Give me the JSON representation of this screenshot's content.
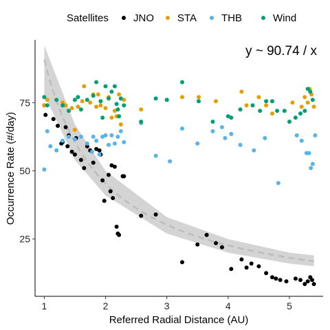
{
  "chart_data": {
    "type": "scatter",
    "xlabel": "Referred Radial Distance (AU)",
    "ylabel": "Occurrence Rate  (#/day)",
    "xlim": [
      0.85,
      5.55
    ],
    "ylim": [
      4,
      98
    ],
    "x_ticks": [
      1,
      2,
      3,
      4,
      5
    ],
    "y_ticks": [
      25,
      50,
      75
    ],
    "grid": false,
    "legend": {
      "title": "Satellites",
      "position": "top"
    },
    "annotation": "y ~ 90.74 / x",
    "fit": {
      "model": "y = 90.74 / x",
      "coefficient": 90.74,
      "line_color": "#bdbdbd",
      "band_color": "#cccccc",
      "band": [
        [
          1.0,
          78,
          96
        ],
        [
          1.5,
          54,
          67
        ],
        [
          2.0,
          41,
          50
        ],
        [
          3.0,
          27,
          33
        ],
        [
          4.0,
          20,
          25
        ],
        [
          5.0,
          16,
          20
        ],
        [
          5.4,
          15,
          19
        ]
      ]
    },
    "series": [
      {
        "name": "JNO",
        "color": "#000000",
        "points": [
          [
            1.0,
            74
          ],
          [
            1.02,
            70.5
          ],
          [
            1.15,
            69
          ],
          [
            1.22,
            66.5
          ],
          [
            1.28,
            60
          ],
          [
            1.3,
            60.5
          ],
          [
            1.35,
            66
          ],
          [
            1.38,
            59
          ],
          [
            1.4,
            63
          ],
          [
            1.45,
            57
          ],
          [
            1.5,
            56
          ],
          [
            1.52,
            62
          ],
          [
            1.6,
            54
          ],
          [
            1.65,
            51
          ],
          [
            1.7,
            59
          ],
          [
            1.75,
            57.5
          ],
          [
            1.8,
            53
          ],
          [
            1.85,
            58
          ],
          [
            1.9,
            57.5
          ],
          [
            1.92,
            56
          ],
          [
            1.95,
            46.5
          ],
          [
            1.98,
            39
          ],
          [
            2.05,
            48.5
          ],
          [
            2.08,
            42.5
          ],
          [
            2.1,
            52
          ],
          [
            2.12,
            40
          ],
          [
            2.15,
            51.5
          ],
          [
            2.18,
            29.5
          ],
          [
            2.2,
            27
          ],
          [
            2.22,
            26.5
          ],
          [
            2.28,
            48
          ],
          [
            2.3,
            48
          ],
          [
            2.58,
            33.5
          ],
          [
            2.82,
            34
          ],
          [
            3.25,
            16.5
          ],
          [
            3.5,
            23
          ],
          [
            3.65,
            26.5
          ],
          [
            3.8,
            23.5
          ],
          [
            3.9,
            22
          ],
          [
            4.05,
            14
          ],
          [
            4.22,
            17.5
          ],
          [
            4.3,
            14.5
          ],
          [
            4.38,
            16
          ],
          [
            4.5,
            15
          ],
          [
            4.62,
            12.5
          ],
          [
            4.72,
            11
          ],
          [
            4.78,
            10.5
          ],
          [
            4.85,
            10
          ],
          [
            4.95,
            9.5
          ],
          [
            5.1,
            10.5
          ],
          [
            5.18,
            10
          ],
          [
            5.25,
            8.5
          ],
          [
            5.3,
            9.5
          ],
          [
            5.34,
            11
          ],
          [
            5.37,
            10
          ],
          [
            5.4,
            8.5
          ]
        ]
      },
      {
        "name": "STA",
        "color": "#E69F00",
        "points": [
          [
            1.0,
            74
          ],
          [
            1.05,
            76
          ],
          [
            1.3,
            75
          ],
          [
            1.35,
            74
          ],
          [
            1.45,
            73
          ],
          [
            1.5,
            65
          ],
          [
            1.55,
            73.5
          ],
          [
            1.62,
            75.5
          ],
          [
            1.65,
            81
          ],
          [
            1.75,
            75
          ],
          [
            1.8,
            78
          ],
          [
            1.85,
            73.5
          ],
          [
            1.88,
            78
          ],
          [
            1.92,
            74
          ],
          [
            2.0,
            73
          ],
          [
            2.05,
            77
          ],
          [
            2.1,
            69.5
          ],
          [
            2.15,
            72
          ],
          [
            2.18,
            70
          ],
          [
            2.22,
            78
          ],
          [
            2.25,
            67
          ],
          [
            2.3,
            76
          ],
          [
            2.58,
            72.5
          ],
          [
            3.0,
            76
          ],
          [
            3.25,
            77
          ],
          [
            3.52,
            77
          ],
          [
            3.8,
            75.5
          ],
          [
            4.22,
            79
          ],
          [
            4.3,
            74
          ],
          [
            4.5,
            77
          ],
          [
            4.62,
            74
          ],
          [
            4.72,
            71
          ],
          [
            5.05,
            75
          ],
          [
            5.2,
            73.5
          ],
          [
            5.25,
            77
          ],
          [
            5.3,
            75
          ],
          [
            5.33,
            80
          ],
          [
            5.36,
            78
          ],
          [
            5.4,
            73.5
          ]
        ]
      },
      {
        "name": "THB",
        "color": "#56B4E9",
        "points": [
          [
            1.0,
            50.5
          ],
          [
            1.05,
            64.5
          ],
          [
            1.1,
            59
          ],
          [
            1.2,
            57.5
          ],
          [
            1.3,
            61
          ],
          [
            1.4,
            62.5
          ],
          [
            1.5,
            61.5
          ],
          [
            1.6,
            62.5
          ],
          [
            1.7,
            60
          ],
          [
            1.78,
            57
          ],
          [
            1.8,
            62.5
          ],
          [
            1.85,
            61
          ],
          [
            1.9,
            56
          ],
          [
            1.95,
            62.5
          ],
          [
            2.0,
            63
          ],
          [
            2.05,
            59.5
          ],
          [
            2.1,
            63
          ],
          [
            2.15,
            60
          ],
          [
            2.2,
            62.5
          ],
          [
            2.25,
            64.5
          ],
          [
            2.3,
            60.5
          ],
          [
            2.58,
            67.5
          ],
          [
            2.82,
            55.5
          ],
          [
            3.05,
            53.5
          ],
          [
            3.25,
            65.5
          ],
          [
            3.5,
            60
          ],
          [
            3.75,
            64.5
          ],
          [
            3.9,
            66
          ],
          [
            3.95,
            62
          ],
          [
            4.05,
            63.5
          ],
          [
            4.2,
            59.5
          ],
          [
            4.42,
            57.5
          ],
          [
            4.6,
            62
          ],
          [
            4.82,
            45.5
          ],
          [
            5.12,
            63
          ],
          [
            5.2,
            61
          ],
          [
            5.28,
            56.5
          ],
          [
            5.32,
            56.5
          ],
          [
            5.35,
            51
          ],
          [
            5.38,
            52.5
          ],
          [
            5.42,
            63
          ]
        ]
      },
      {
        "name": "Wind",
        "color": "#009E73",
        "points": [
          [
            1.0,
            77
          ],
          [
            1.05,
            74
          ],
          [
            1.2,
            76
          ],
          [
            1.3,
            74
          ],
          [
            1.4,
            72
          ],
          [
            1.5,
            76
          ],
          [
            1.55,
            77
          ],
          [
            1.6,
            72.5
          ],
          [
            1.7,
            76
          ],
          [
            1.8,
            77.5
          ],
          [
            1.85,
            82.5
          ],
          [
            1.92,
            75.5
          ],
          [
            1.95,
            69.5
          ],
          [
            2.0,
            81
          ],
          [
            2.05,
            76.5
          ],
          [
            2.1,
            79
          ],
          [
            2.15,
            81
          ],
          [
            2.18,
            74.5
          ],
          [
            2.2,
            72.5
          ],
          [
            2.22,
            70
          ],
          [
            2.25,
            76.5
          ],
          [
            2.3,
            74
          ],
          [
            2.58,
            68
          ],
          [
            2.82,
            76.5
          ],
          [
            3.0,
            76
          ],
          [
            3.25,
            82.5
          ],
          [
            3.52,
            75.5
          ],
          [
            3.75,
            68
          ],
          [
            4.0,
            70
          ],
          [
            4.05,
            69.5
          ],
          [
            4.2,
            72.5
          ],
          [
            4.4,
            74
          ],
          [
            4.52,
            72
          ],
          [
            4.62,
            75.5
          ],
          [
            4.72,
            75.5
          ],
          [
            4.8,
            72
          ],
          [
            4.92,
            72
          ],
          [
            5.0,
            68
          ],
          [
            5.1,
            69.5
          ],
          [
            5.18,
            71
          ],
          [
            5.25,
            72
          ],
          [
            5.3,
            80
          ],
          [
            5.34,
            79
          ],
          [
            5.38,
            76
          ]
        ]
      }
    ]
  }
}
